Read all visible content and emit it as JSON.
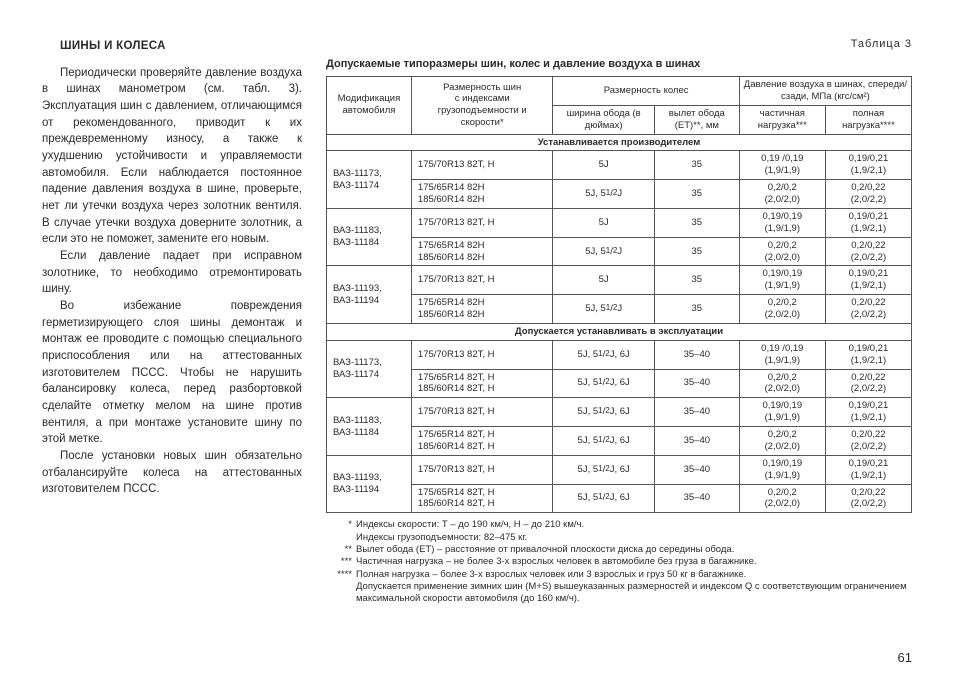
{
  "left": {
    "heading": "ШИНЫ И КОЛЕСА",
    "p1": "Периодически проверяйте давление воздуха в шинах манометром (см. табл. 3). Эксплуатация шин с давлением, отличающимся от рекомендованного, приводит к их преждевременному износу, а также к ухудшению устойчивости и управляемости автомобиля. Если наблюдается постоянное падение давления воздуха в шине, проверьте, нет ли утечки воздуха через золотник вентиля. В случае утечки воздуха доверните золотник, а если это не поможет, замените его новым.",
    "p2": "Если давление падает при исправном золотнике, то необходимо отремонтировать шину.",
    "p3": "Во избежание повреждения герметизирующего слоя шины демонтаж и монтаж ее проводите с помощью специального приспособления или на аттестованных изготовителем ПССС. Чтобы не нарушить балансировку колеса, перед разбортовкой сделайте отметку мелом на шине против вентиля, а при монтаже установите шину по этой метке.",
    "p4": "После установки новых шин обязательно отбалансируйте колеса на аттестованных изготовителем ПССС."
  },
  "table": {
    "label": "Таблица 3",
    "title": "Допускаемые типоразмеры шин, колес и давление воздуха в шинах",
    "head": {
      "c1a": "Модификация",
      "c1b": "автомобиля",
      "c2a": "Размерность шин",
      "c2b": "с индексами грузоподъемности и скорости*",
      "c3": "Размерность колес",
      "c3a": "ширина обода (в дюймах)",
      "c3b": "вылет обода (ЕТ)**, мм",
      "c4": "Давление воздуха в шинах, спереди/сзади, МПа (кгс/см²)",
      "c4a": "частичная нагрузка***",
      "c4b": "полная нагрузка****"
    },
    "section1": "Устанавливается производителем",
    "section2": "Допускается устанавливать в эксплуатации",
    "groups1": [
      {
        "m": "ВАЗ-11173,\nВАЗ-11174",
        "rows": [
          [
            "175/70R13 82T, H",
            "5J",
            "35",
            "0,19 /0,19\n(1,9/1,9)",
            "0,19/0,21\n(1,9/2,1)"
          ],
          [
            "175/65R14 82H\n185/60R14 82H",
            "5J, 5½J",
            "35",
            "0,2/0,2\n(2,0/2,0)",
            "0,2/0,22\n(2,0/2,2)"
          ]
        ]
      },
      {
        "m": "ВАЗ-11183,\nВАЗ-11184",
        "rows": [
          [
            "175/70R13 82T, H",
            "5J",
            "35",
            "0,19/0,19\n(1,9/1,9)",
            "0,19/0,21\n(1,9/2,1)"
          ],
          [
            "175/65R14 82H\n185/60R14 82H",
            "5J, 5½J",
            "35",
            "0,2/0,2\n(2,0/2,0)",
            "0,2/0,22\n(2,0/2,2)"
          ]
        ]
      },
      {
        "m": "ВАЗ-11193,\nВАЗ-11194",
        "rows": [
          [
            "175/70R13 82T, H",
            "5J",
            "35",
            "0,19/0,19\n(1,9/1,9)",
            "0,19/0,21\n(1,9/2,1)"
          ],
          [
            "175/65R14 82H\n185/60R14 82H",
            "5J, 5½J",
            "35",
            "0,2/0,2\n(2,0/2,0)",
            "0,2/0,22\n(2,0/2,2)"
          ]
        ]
      }
    ],
    "groups2": [
      {
        "m": "ВАЗ-11173,\nВАЗ-11174",
        "rows": [
          [
            "175/70R13 82T, H",
            "5J, 5½J, 6J",
            "35–40",
            "0,19 /0,19\n(1,9/1,9)",
            "0,19/0,21\n(1,9/2,1)"
          ],
          [
            "175/65R14 82T, H\n185/60R14 82T, H",
            "5J, 5½J, 6J",
            "35–40",
            "0,2/0,2\n(2,0/2,0)",
            "0,2/0,22\n(2,0/2,2)"
          ]
        ]
      },
      {
        "m": "ВАЗ-11183,\nВАЗ-11184",
        "rows": [
          [
            "175/70R13 82T, H",
            "5J, 5½J, 6J",
            "35–40",
            "0,19/0,19\n(1,9/1,9)",
            "0,19/0,21\n(1,9/2,1)"
          ],
          [
            "175/65R14 82T, H\n185/60R14 82T, H",
            "5J, 5½J, 6J",
            "35–40",
            "0,2/0,2\n(2,0/2,0)",
            "0,2/0,22\n(2,0/2,2)"
          ]
        ]
      },
      {
        "m": "ВАЗ-11193,\nВАЗ-11194",
        "rows": [
          [
            "175/70R13 82T, H",
            "5J, 5½J, 6J",
            "35–40",
            "0,19/0,19\n(1,9/1,9)",
            "0,19/0,21\n(1,9/2,1)"
          ],
          [
            "175/65R14 82T, H\n185/60R14 82T, H",
            "5J, 5½J, 6J",
            "35–40",
            "0,2/0,2\n(2,0/2,0)",
            "0,2/0,22\n(2,0/2,2)"
          ]
        ]
      }
    ]
  },
  "footnotes": {
    "f1": "Индексы скорости: Т – до 190 км/ч, Н – до 210 км/ч.\nИндексы грузоподъемности: 82–475 кг.",
    "f2": "Вылет обода (ЕТ) – расстояние от привалочной плоскости диска до середины обода.",
    "f3": "Частичная нагрузка – не более 3-х взрослых человек в автомобиле без груза в багажнике.",
    "f4": "Полная нагрузка – более 3-х взрослых человек или 3 взрослых и груз 50 кг в багажнике.\nДопускается применение зимних шин (M+S) вышеуказанных размерностей и индексом Q с соответствующим ограничением максимальной скорости автомобиля (до 160 км/ч)."
  },
  "pageNumber": "61"
}
